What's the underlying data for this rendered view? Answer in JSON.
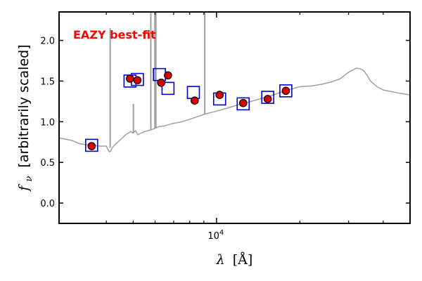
{
  "chart_data": {
    "type": "scatter",
    "title": "",
    "annotation": "EAZY best-fit",
    "annotation_color": "#ff0000",
    "xlabel_symbol": "λ",
    "xlabel_unit": "[Å]",
    "ylabel_symbol": "f",
    "ylabel_subscript": "ν",
    "ylabel_text": "[arbitrarily scaled]",
    "x_scale": "log",
    "xlim": [
      2700,
      50000
    ],
    "ylim": [
      -0.25,
      2.35
    ],
    "y_ticks": [
      0.0,
      0.5,
      1.0,
      1.5,
      2.0
    ],
    "y_tick_labels": [
      "0.0",
      "0.5",
      "1.0",
      "1.5",
      "2.0"
    ],
    "x_major_tick": 10000,
    "x_major_tick_base": "10",
    "x_major_tick_exp": "4",
    "x_minor_ticks": [
      4000,
      5000,
      6000,
      7000,
      8000,
      9000,
      20000,
      30000,
      40000
    ],
    "grid": false,
    "colors": {
      "observed": "#dd0000",
      "model": "#0000dd",
      "template": "#a0a0a0"
    },
    "observed_photometry": {
      "x": [
        3540,
        4870,
        5180,
        6310,
        6680,
        8340,
        10260,
        12480,
        15310,
        17800
      ],
      "y": [
        0.7,
        1.53,
        1.51,
        1.48,
        1.57,
        1.26,
        1.33,
        1.23,
        1.28,
        1.38
      ]
    },
    "model_photometry": {
      "x": [
        3540,
        4870,
        5180,
        6220,
        6680,
        8250,
        10260,
        12480,
        15310,
        17800
      ],
      "y": [
        0.71,
        1.5,
        1.52,
        1.58,
        1.41,
        1.36,
        1.28,
        1.22,
        1.3,
        1.38
      ]
    },
    "template_spectrum": {
      "x": [
        2700,
        3000,
        3200,
        3500,
        3800,
        4000,
        4050,
        4100,
        4150,
        4200,
        4300,
        4500,
        4700,
        4900,
        5000,
        5100,
        5200,
        5500,
        5800,
        6000,
        6200,
        6500,
        6800,
        7000,
        7500,
        8000,
        8500,
        9000,
        10000,
        11000,
        12000,
        13000,
        14000,
        15000,
        16000,
        17000,
        18000,
        19000,
        20000,
        22000,
        24000,
        26000,
        28000,
        30000,
        32000,
        33000,
        34000,
        35000,
        36000,
        38000,
        40000,
        43000,
        46000,
        50000
      ],
      "y": [
        0.8,
        0.77,
        0.73,
        0.71,
        0.7,
        0.7,
        0.66,
        0.63,
        0.64,
        0.68,
        0.72,
        0.78,
        0.84,
        0.88,
        0.86,
        0.89,
        0.84,
        0.88,
        0.9,
        0.92,
        0.94,
        0.95,
        0.97,
        0.98,
        1.0,
        1.03,
        1.06,
        1.09,
        1.13,
        1.17,
        1.21,
        1.24,
        1.27,
        1.3,
        1.33,
        1.36,
        1.39,
        1.41,
        1.43,
        1.44,
        1.46,
        1.49,
        1.53,
        1.61,
        1.66,
        1.65,
        1.63,
        1.57,
        1.5,
        1.43,
        1.39,
        1.37,
        1.35,
        1.33
      ]
    },
    "template_lines": [
      {
        "x": 4130,
        "y_top": 2.15,
        "y_bottom": 0.68
      },
      {
        "x": 5010,
        "y_top": 1.22,
        "y_bottom": 0.86
      },
      {
        "x": 5790,
        "y_top": 2.35,
        "y_bottom": 0.9
      },
      {
        "x": 5990,
        "y_top": 2.35,
        "y_bottom": 0.92
      },
      {
        "x": 6040,
        "y_top": 2.35,
        "y_bottom": 0.92
      },
      {
        "x": 9070,
        "y_top": 2.35,
        "y_bottom": 1.09
      }
    ]
  }
}
